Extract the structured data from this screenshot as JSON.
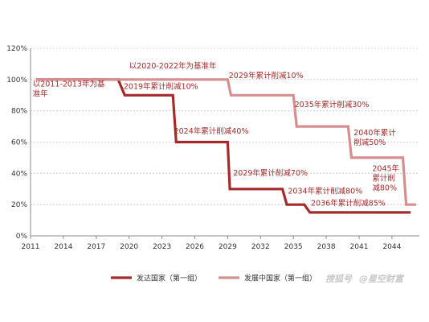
{
  "colors": {
    "developed": "#a52a2a",
    "developing": "#d68f8f",
    "grid": "#c8c8c8",
    "axis": "#888888",
    "watermark": "#c8c8c8"
  },
  "watermark": {
    "logo_text": "搜狐号",
    "text": "@星空财富"
  },
  "chart_data": {
    "type": "line",
    "x_ticks": [
      "2011",
      "2014",
      "2017",
      "2020",
      "2023",
      "2026",
      "2029",
      "2032",
      "2035",
      "2038",
      "2041",
      "2044"
    ],
    "y_ticks": [
      "0%",
      "20%",
      "40%",
      "60%",
      "80%",
      "100%",
      "120%"
    ],
    "xlim": [
      2011,
      2046.5
    ],
    "ylim": [
      0,
      120
    ],
    "grid": "horizontal",
    "legend_position": "bottom",
    "series": [
      {
        "name": "发达国家（第一组）",
        "color": "#a52a2a",
        "step": true,
        "x": [
          2011.5,
          2019,
          2019.6,
          2024,
          2024.3,
          2029,
          2029.2,
          2034,
          2034.4,
          2036,
          2036.5,
          2045.7
        ],
        "y": [
          100,
          100,
          90,
          90,
          60,
          60,
          30,
          30,
          20,
          20,
          15,
          15
        ]
      },
      {
        "name": "发展中国家（第一组）",
        "color": "#d68f8f",
        "step": true,
        "x": [
          2011.5,
          2029,
          2029.3,
          2035,
          2035.3,
          2040,
          2040.3,
          2045,
          2045.3,
          2046.2
        ],
        "y": [
          100,
          100,
          90,
          90,
          70,
          70,
          50,
          50,
          20,
          20
        ]
      }
    ],
    "annotations": [
      {
        "lines": [
          "以2011-2013年为基",
          "准年"
        ],
        "x": 2011.2,
        "y": 95.5,
        "color": "#a52a2a"
      },
      {
        "lines": [
          "以2020-2022年为基准年"
        ],
        "x": 2020.0,
        "y": 107.0,
        "color": "#a52a2a"
      },
      {
        "lines": [
          "2019年累计削减10%"
        ],
        "x": 2019.5,
        "y": 94.0,
        "color": "#a52a2a"
      },
      {
        "lines": [
          "2029年累计削减10%"
        ],
        "x": 2029.1,
        "y": 101.0,
        "color": "#a52a2a"
      },
      {
        "lines": [
          "2035年累计削减30%"
        ],
        "x": 2035.1,
        "y": 82.5,
        "color": "#a52a2a"
      },
      {
        "lines": [
          "2024年累计削减40%"
        ],
        "x": 2024.1,
        "y": 65.5,
        "color": "#a52a2a"
      },
      {
        "lines": [
          "2040年累计",
          "削减50%"
        ],
        "x": 2040.5,
        "y": 64.5,
        "color": "#a52a2a"
      },
      {
        "lines": [
          "2029年累计削减70%"
        ],
        "x": 2029.5,
        "y": 38.5,
        "color": "#a52a2a"
      },
      {
        "lines": [
          "2045年",
          "累计削",
          "减80%"
        ],
        "x": 2042.2,
        "y": 41.5,
        "color": "#a52a2a"
      },
      {
        "lines": [
          "2034年累计削减80%"
        ],
        "x": 2034.5,
        "y": 27.0,
        "color": "#a52a2a"
      },
      {
        "lines": [
          "2036年累计削减85%"
        ],
        "x": 2036.6,
        "y": 19.2,
        "color": "#a52a2a"
      }
    ]
  }
}
